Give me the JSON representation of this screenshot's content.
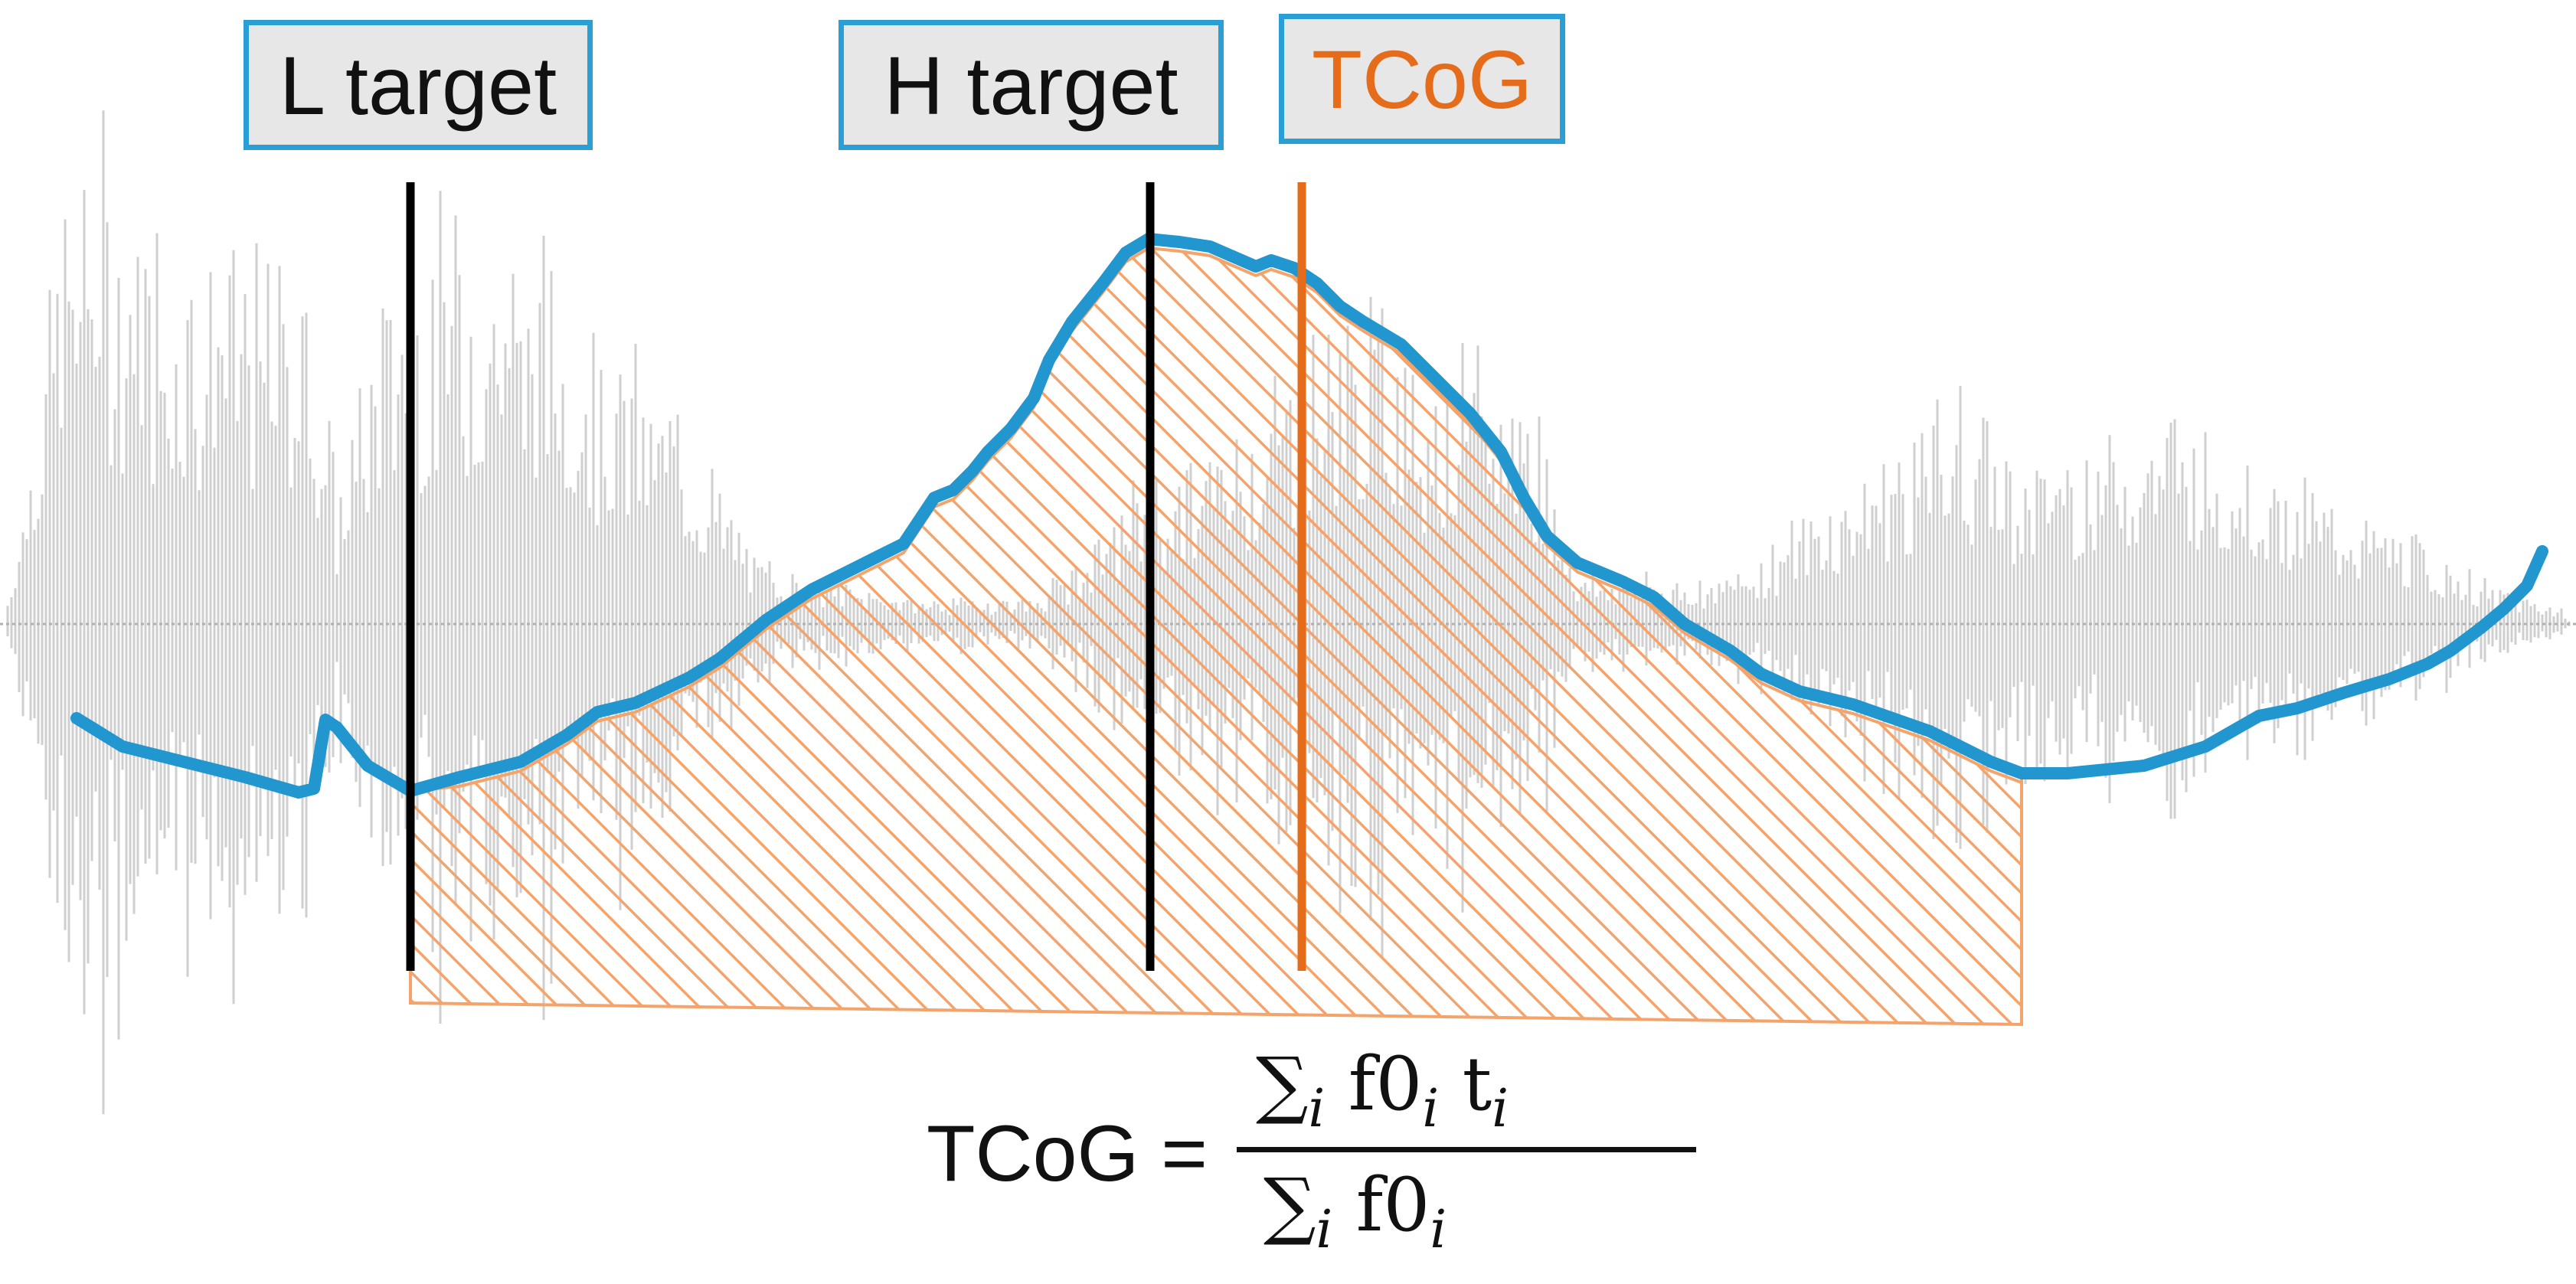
{
  "labels": {
    "l_target": "L target",
    "h_target": "H target",
    "tcog": "TCoG"
  },
  "formula": {
    "lhs": "TCoG =",
    "numerator_sum": "∑",
    "numerator_sub": "i",
    "numerator_f0": "f0",
    "numerator_f0_sub": "i",
    "numerator_t": "t",
    "numerator_t_sub": "i",
    "denominator_sum": "∑",
    "denominator_sub": "i",
    "denominator_f0": "f0",
    "denominator_f0_sub": "i"
  },
  "colors": {
    "waveform": "#c8c8c8",
    "pitch_contour": "#2196cf",
    "target_lines": "#000000",
    "tcog_line": "#e46c1a",
    "hatch_fill": "#f4a46b",
    "box_border": "#2a9fd6",
    "box_fill": "#e7e7e7"
  }
}
